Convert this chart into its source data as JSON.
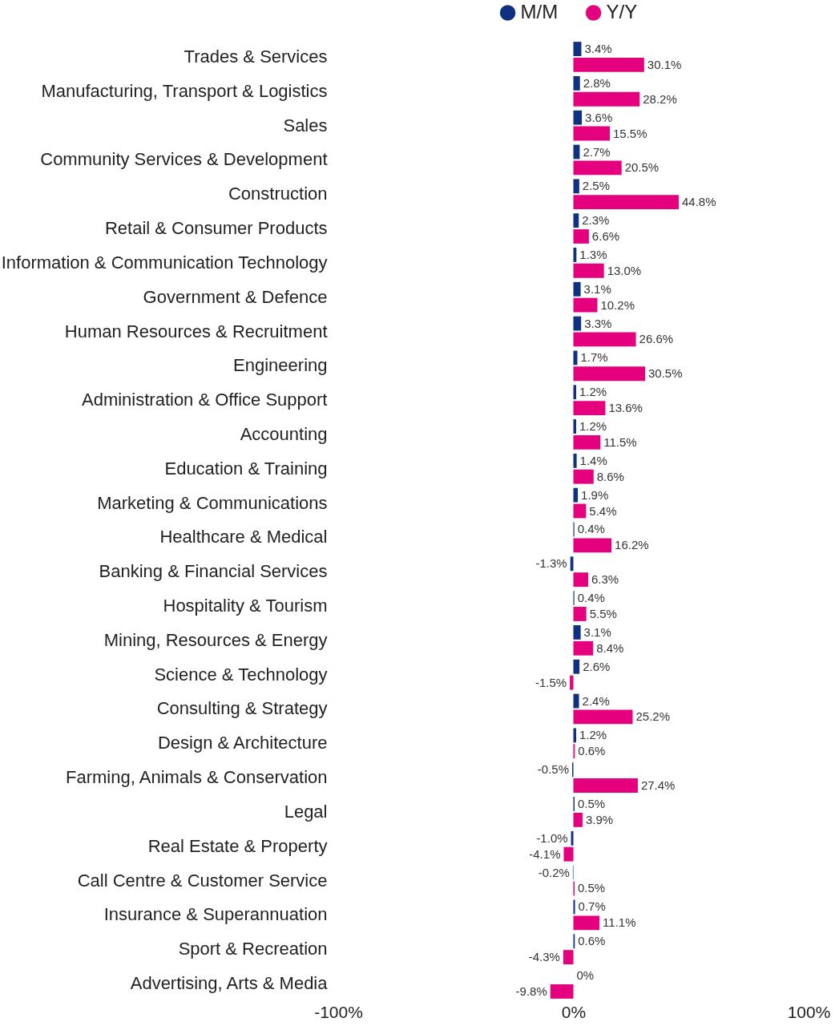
{
  "chart_data": {
    "type": "bar",
    "orientation": "horizontal",
    "categories": [
      "Trades & Services",
      "Manufacturing, Transport & Logistics",
      "Sales",
      "Community Services & Development",
      "Construction",
      "Retail & Consumer Products",
      "Information & Communication Technology",
      "Government & Defence",
      "Human Resources & Recruitment",
      "Engineering",
      "Administration & Office Support",
      "Accounting",
      "Education & Training",
      "Marketing & Communications",
      "Healthcare & Medical",
      "Banking & Financial Services",
      "Hospitality & Tourism",
      "Mining, Resources & Energy",
      "Science & Technology",
      "Consulting & Strategy",
      "Design & Architecture",
      "Farming, Animals & Conservation",
      "Legal",
      "Real Estate & Property",
      "Call Centre & Customer Service",
      "Insurance & Superannuation",
      "Sport & Recreation",
      "Advertising, Arts & Media"
    ],
    "series": [
      {
        "name": "M/M",
        "color": "#10317f",
        "values": [
          3.4,
          2.8,
          3.6,
          2.7,
          2.5,
          2.3,
          1.3,
          3.1,
          3.3,
          1.7,
          1.2,
          1.2,
          1.4,
          1.9,
          0.4,
          -1.3,
          0.4,
          3.1,
          2.6,
          2.4,
          1.2,
          -0.5,
          0.5,
          -1.0,
          -0.2,
          0.7,
          0.6,
          0
        ],
        "value_labels": [
          "3.4%",
          "2.8%",
          "3.6%",
          "2.7%",
          "2.5%",
          "2.3%",
          "1.3%",
          "3.1%",
          "3.3%",
          "1.7%",
          "1.2%",
          "1.2%",
          "1.4%",
          "1.9%",
          "0.4%",
          "-1.3%",
          "0.4%",
          "3.1%",
          "2.6%",
          "2.4%",
          "1.2%",
          "-0.5%",
          "0.5%",
          "-1.0%",
          "-0.2%",
          "0.7%",
          "0.6%",
          "0%"
        ]
      },
      {
        "name": "Y/Y",
        "color": "#e5007d",
        "values": [
          30.1,
          28.2,
          15.5,
          20.5,
          44.8,
          6.6,
          13.0,
          10.2,
          26.6,
          30.5,
          13.6,
          11.5,
          8.6,
          5.4,
          16.2,
          6.3,
          5.5,
          8.4,
          -1.5,
          25.2,
          0.6,
          27.4,
          3.9,
          -4.1,
          0.5,
          11.1,
          -4.3,
          -9.8
        ],
        "value_labels": [
          "30.1%",
          "28.2%",
          "15.5%",
          "20.5%",
          "44.8%",
          "6.6%",
          "13.0%",
          "10.2%",
          "26.6%",
          "30.5%",
          "13.6%",
          "11.5%",
          "8.6%",
          "5.4%",
          "16.2%",
          "6.3%",
          "5.5%",
          "8.4%",
          "-1.5%",
          "25.2%",
          "0.6%",
          "27.4%",
          "3.9%",
          "-4.1%",
          "0.5%",
          "11.1%",
          "-4.3%",
          "-9.8%"
        ]
      }
    ],
    "xlim": [
      -100,
      100
    ],
    "xticks": [
      {
        "value": -100,
        "label": "-100%"
      },
      {
        "value": 0,
        "label": "0%"
      },
      {
        "value": 100,
        "label": "100%"
      }
    ],
    "legend": "top"
  }
}
